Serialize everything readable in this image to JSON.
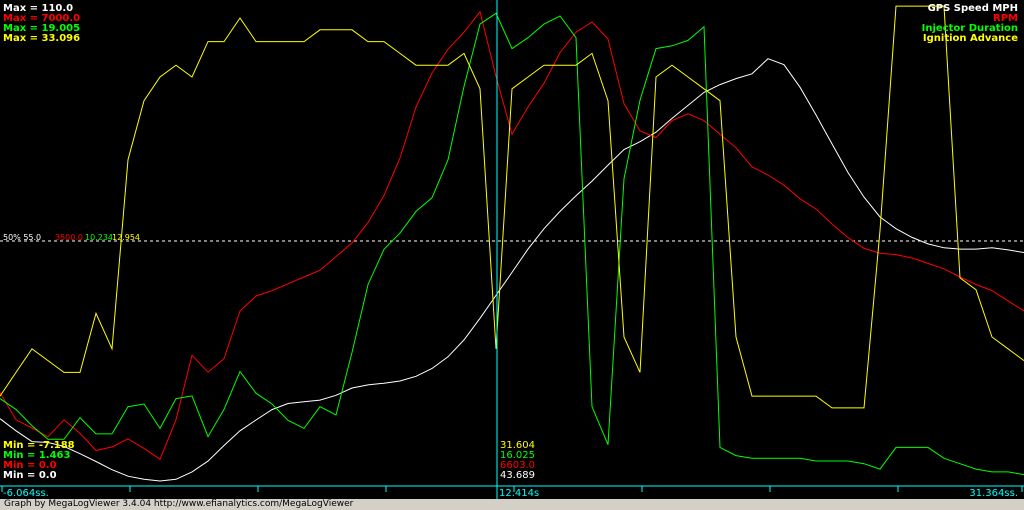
{
  "colors": {
    "background": "#000000",
    "speed": "#ffffff",
    "rpm": "#ff0000",
    "injector": "#00ff00",
    "ignition": "#ffff00",
    "cursor": "#00ffff",
    "axis": "#00ffff",
    "midline": "#ffffff"
  },
  "chart_data": {
    "type": "line",
    "x": [
      0,
      16,
      32,
      48,
      64,
      80,
      96,
      112,
      128,
      144,
      160,
      176,
      192,
      208,
      224,
      240,
      256,
      272,
      288,
      304,
      320,
      336,
      352,
      368,
      384,
      400,
      416,
      432,
      448,
      464,
      480,
      496,
      512,
      528,
      544,
      560,
      576,
      592,
      608,
      624,
      640,
      656,
      672,
      688,
      704,
      720,
      736,
      752,
      768,
      784,
      800,
      816,
      832,
      848,
      864,
      880,
      896,
      912,
      928,
      944,
      960,
      976,
      992,
      1008,
      1024
    ],
    "xlabel": "",
    "ylabel": "",
    "max_labels": [
      {
        "text": "Max = 110.0",
        "color": "#ffffff"
      },
      {
        "text": "Max = 7000.0",
        "color": "#ff0000"
      },
      {
        "text": "Max = 19.005",
        "color": "#00ff00"
      },
      {
        "text": "Max = 33.096",
        "color": "#ffff00"
      }
    ],
    "min_labels": [
      {
        "text": "Min = -7.188",
        "color": "#ffff00"
      },
      {
        "text": "Min = 1.463",
        "color": "#00ff00"
      },
      {
        "text": "Min = 0.0",
        "color": "#ff0000"
      },
      {
        "text": "Min = 0.0",
        "color": "#ffffff"
      }
    ],
    "legend": [
      {
        "text": "GPS Speed MPH",
        "color": "#ffffff"
      },
      {
        "text": "RPM",
        "color": "#ff0000"
      },
      {
        "text": "Injector Duration",
        "color": "#00ff00"
      },
      {
        "text": "Ignition Advance",
        "color": "#ffff00"
      }
    ],
    "midline": {
      "label": "50% 55.0",
      "values": [
        {
          "text": "3500.0",
          "color": "#ff0000"
        },
        {
          "text": "10.234",
          "color": "#00ff00"
        },
        {
          "text": "12.954",
          "color": "#ffff00"
        }
      ]
    },
    "cursor_values": [
      {
        "text": "31.604",
        "color": "#ffff00"
      },
      {
        "text": "16.025",
        "color": "#00ff00"
      },
      {
        "text": "6603.0",
        "color": "#ff0000"
      },
      {
        "text": "43.689",
        "color": "#ffffff"
      }
    ],
    "time_labels": {
      "left": "-6.064ss.",
      "cursor": "12.414s",
      "right": "31.364ss."
    },
    "series": [
      {
        "name": "GPS Speed MPH",
        "ylim": [
          0,
          110
        ],
        "color": "#ffffff",
        "values": [
          14.4,
          11.6,
          9.1,
          8.9,
          8.0,
          6.3,
          4.5,
          2.6,
          1.1,
          0.4,
          0,
          0.4,
          2.1,
          4.6,
          8.2,
          11.6,
          14.1,
          16.5,
          17.9,
          18.3,
          18.7,
          19.8,
          21.5,
          22.2,
          22.6,
          23.1,
          24.2,
          26.0,
          28.7,
          32.6,
          37.6,
          42.9,
          48.2,
          53.6,
          58.3,
          62.3,
          65.9,
          69.3,
          73.0,
          76.6,
          78.4,
          80.6,
          83.8,
          86.8,
          89.8,
          91.6,
          93.0,
          94.1,
          97.6,
          96.2,
          91.0,
          84.6,
          77.9,
          71.3,
          65.6,
          61.0,
          58.3,
          56.3,
          54.8,
          53.9,
          53.6,
          53.6,
          53.9,
          53.4,
          52.8
        ]
      },
      {
        "name": "RPM",
        "ylim": [
          0,
          7000
        ],
        "color": "#ff0000",
        "values": [
          1300,
          900,
          780,
          650,
          900,
          700,
          450,
          500,
          620,
          480,
          320,
          900,
          1850,
          1600,
          1800,
          2500,
          2720,
          2800,
          2900,
          3000,
          3100,
          3300,
          3500,
          3800,
          4200,
          4750,
          5500,
          6000,
          6350,
          6600,
          6900,
          5950,
          5100,
          5500,
          5850,
          6300,
          6600,
          6750,
          6500,
          5550,
          5150,
          5050,
          5300,
          5400,
          5300,
          5100,
          4900,
          4620,
          4500,
          4350,
          4150,
          4000,
          3780,
          3580,
          3420,
          3350,
          3330,
          3280,
          3200,
          3120,
          3000,
          2890,
          2800,
          2650,
          2500
        ]
      },
      {
        "name": "Injector Duration",
        "ylim": [
          1.463,
          19.005
        ],
        "color": "#00ff00",
        "values": [
          4.5,
          4.1,
          3.5,
          3.0,
          3.0,
          3.8,
          3.2,
          3.2,
          4.2,
          4.3,
          3.4,
          4.5,
          4.6,
          3.1,
          4.1,
          5.5,
          4.7,
          4.3,
          3.7,
          3.4,
          4.2,
          3.9,
          6.2,
          8.7,
          10.0,
          10.6,
          11.4,
          11.9,
          13.3,
          16.0,
          18.3,
          18.7,
          17.4,
          17.8,
          18.3,
          18.6,
          17.8,
          4.2,
          2.8,
          12.6,
          15.5,
          17.4,
          17.5,
          17.7,
          18.2,
          2.7,
          2.4,
          2.3,
          2.3,
          2.3,
          2.3,
          2.2,
          2.2,
          2.2,
          2.1,
          1.9,
          2.7,
          2.7,
          2.7,
          2.3,
          2.1,
          1.9,
          1.8,
          1.8,
          1.7
        ]
      },
      {
        "name": "Ignition Advance",
        "ylim": [
          -7.188,
          33.096
        ],
        "color": "#ffff00",
        "values": [
          0,
          2,
          4,
          3,
          2,
          2,
          7,
          4,
          20,
          25,
          27,
          28,
          27,
          30,
          30,
          32,
          30,
          30,
          30,
          30,
          31,
          31,
          31,
          30,
          30,
          29,
          28,
          28,
          28,
          29,
          26,
          4,
          26,
          27,
          28,
          28,
          28,
          29,
          25,
          5,
          2,
          27,
          28,
          27,
          26,
          25,
          5,
          0,
          0,
          0,
          0,
          0,
          -1,
          -1,
          -1,
          14,
          33,
          33,
          33,
          33,
          10,
          9,
          5,
          4,
          3
        ]
      }
    ]
  }
}
